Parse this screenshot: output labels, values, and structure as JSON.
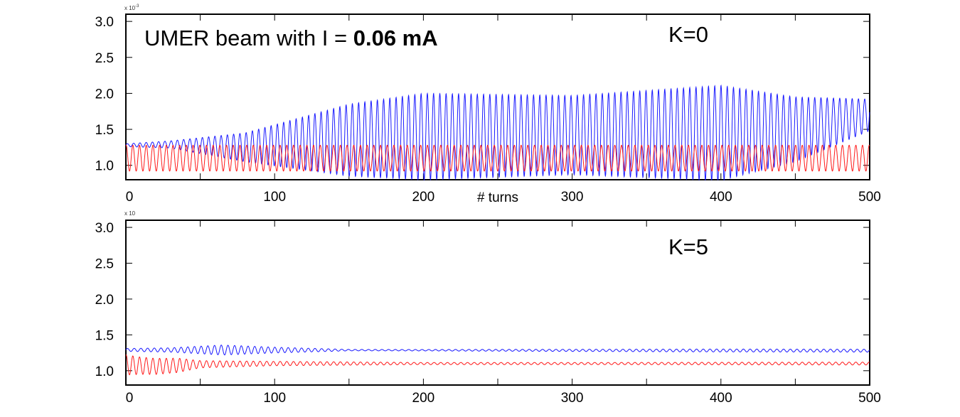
{
  "chart_data": [
    {
      "type": "line",
      "panel": "top",
      "annotation_prefix": "UMER beam with I = ",
      "annotation_bold": "0.06 mA",
      "label": "K=0",
      "y_exponent": "x 10",
      "y_exponent_power": "-3",
      "xlabel": "# turns",
      "xlim": [
        0,
        500
      ],
      "ylim": [
        0.8,
        3.1
      ],
      "x_ticks": [
        "0",
        "100",
        "200",
        "300",
        "400",
        "500"
      ],
      "y_ticks": [
        "1.0",
        "1.5",
        "2.0",
        "2.5",
        "3.0"
      ],
      "grid": false,
      "series": [
        {
          "color": "#1a1aff",
          "period_turns": 4.2,
          "center": [
            [
              0,
              1.28
            ],
            [
              30,
              1.29
            ],
            [
              80,
              1.25
            ],
            [
              150,
              1.35
            ],
            [
              200,
              1.4
            ],
            [
              300,
              1.42
            ],
            [
              400,
              1.45
            ],
            [
              450,
              1.5
            ],
            [
              500,
              1.7
            ]
          ],
          "amplitude": [
            [
              0,
              0.02
            ],
            [
              30,
              0.05
            ],
            [
              80,
              0.2
            ],
            [
              150,
              0.5
            ],
            [
              200,
              0.6
            ],
            [
              300,
              0.55
            ],
            [
              400,
              0.66
            ],
            [
              450,
              0.45
            ],
            [
              500,
              0.22
            ]
          ]
        },
        {
          "color": "#ff1a1a",
          "period_turns": 4.5,
          "center": [
            [
              0,
              1.1
            ],
            [
              500,
              1.1
            ]
          ],
          "amplitude": [
            [
              0,
              0.18
            ],
            [
              500,
              0.18
            ]
          ]
        }
      ]
    },
    {
      "type": "line",
      "panel": "bottom",
      "label": "K=5",
      "y_exponent": "x 10",
      "xlim": [
        0,
        500
      ],
      "ylim": [
        0.8,
        3.1
      ],
      "x_ticks": [
        "0",
        "100",
        "200",
        "300",
        "400",
        "500"
      ],
      "y_ticks": [
        "1.0",
        "1.5",
        "2.0",
        "2.5",
        "3.0"
      ],
      "grid": false,
      "series": [
        {
          "color": "#1a1aff",
          "period_turns": 4.5,
          "center": [
            [
              0,
              1.29
            ],
            [
              500,
              1.28
            ]
          ],
          "amplitude": [
            [
              0,
              0.02
            ],
            [
              30,
              0.03
            ],
            [
              65,
              0.07
            ],
            [
              100,
              0.04
            ],
            [
              150,
              0.01
            ],
            [
              200,
              0.01
            ],
            [
              300,
              0.015
            ],
            [
              400,
              0.02
            ],
            [
              500,
              0.02
            ]
          ]
        },
        {
          "color": "#ff1a1a",
          "period_turns": 4.5,
          "center": [
            [
              0,
              1.08
            ],
            [
              20,
              1.06
            ],
            [
              50,
              1.09
            ],
            [
              100,
              1.1
            ],
            [
              500,
              1.1
            ]
          ],
          "amplitude": [
            [
              0,
              0.14
            ],
            [
              10,
              0.12
            ],
            [
              35,
              0.1
            ],
            [
              50,
              0.05
            ],
            [
              100,
              0.03
            ],
            [
              200,
              0.015
            ],
            [
              300,
              0.015
            ],
            [
              500,
              0.02
            ]
          ]
        }
      ]
    }
  ]
}
